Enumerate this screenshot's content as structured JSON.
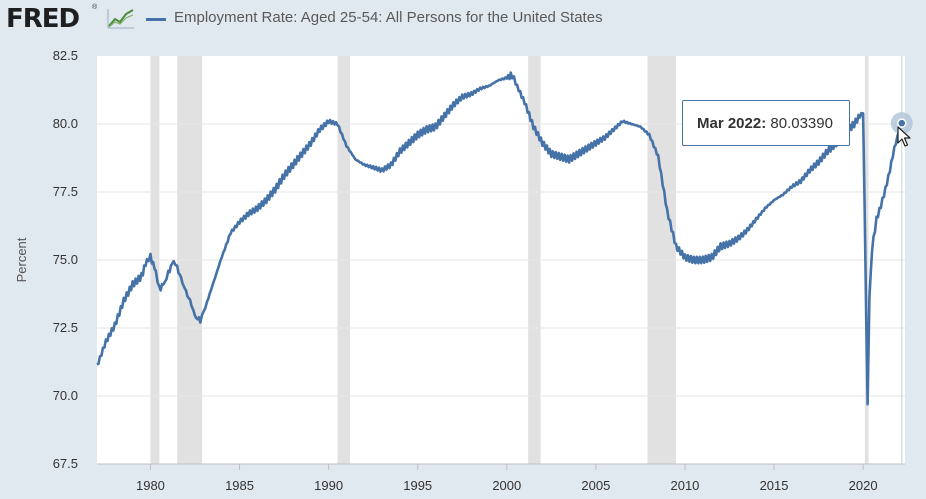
{
  "header": {
    "logo_text": "FRED",
    "logo_reg": "®",
    "series_title": "Employment Rate: Aged 25-54: All Persons for the United States",
    "series_color": "#4572a7"
  },
  "tooltip": {
    "date": "Mar 2022:",
    "value": "80.03390"
  },
  "chart_data": {
    "type": "line",
    "title": "",
    "xlabel": "",
    "ylabel": "Percent",
    "ylim": [
      67.5,
      82.5
    ],
    "xlim": [
      1977.0,
      2022.35
    ],
    "y_ticks": [
      "67.5",
      "70.0",
      "72.5",
      "75.0",
      "77.5",
      "80.0",
      "82.5"
    ],
    "x_ticks": [
      "1980",
      "1985",
      "1990",
      "1995",
      "2000",
      "2005",
      "2010",
      "2015",
      "2020"
    ],
    "grid": true,
    "legend": "top",
    "recessions": [
      [
        1980.0,
        1980.5
      ],
      [
        1981.5,
        1982.9
      ],
      [
        1990.5,
        1991.2
      ],
      [
        2001.2,
        2001.9
      ],
      [
        2007.9,
        2009.5
      ],
      [
        2020.1,
        2020.3
      ]
    ],
    "series": [
      {
        "name": "Employment Rate: Aged 25-54: All Persons for the United States",
        "color": "#4572a7",
        "x": [
          1977.0,
          1977.5,
          1978.0,
          1978.5,
          1979.0,
          1979.5,
          1979.8,
          1980.0,
          1980.3,
          1980.5,
          1980.8,
          1981.0,
          1981.3,
          1981.5,
          1981.8,
          1982.0,
          1982.3,
          1982.5,
          1982.8,
          1983.0,
          1983.5,
          1984.0,
          1984.5,
          1985.0,
          1985.5,
          1986.0,
          1986.5,
          1987.0,
          1987.5,
          1988.0,
          1988.5,
          1989.0,
          1989.5,
          1990.0,
          1990.5,
          1991.0,
          1991.5,
          1992.0,
          1992.5,
          1993.0,
          1993.5,
          1994.0,
          1994.5,
          1995.0,
          1995.5,
          1996.0,
          1996.5,
          1997.0,
          1997.5,
          1998.0,
          1998.5,
          1999.0,
          1999.5,
          2000.0,
          2000.3,
          2000.5,
          2001.0,
          2001.5,
          2002.0,
          2002.5,
          2003.0,
          2003.5,
          2004.0,
          2004.5,
          2005.0,
          2005.5,
          2006.0,
          2006.5,
          2007.0,
          2007.5,
          2008.0,
          2008.5,
          2009.0,
          2009.5,
          2010.0,
          2010.5,
          2011.0,
          2011.5,
          2012.0,
          2012.5,
          2013.0,
          2013.5,
          2014.0,
          2014.5,
          2015.0,
          2015.5,
          2016.0,
          2016.5,
          2017.0,
          2017.5,
          2018.0,
          2018.5,
          2019.0,
          2019.5,
          2019.9,
          2020.0,
          2020.25,
          2020.35,
          2020.5,
          2020.75,
          2021.0,
          2021.25,
          2021.5,
          2021.75,
          2022.0,
          2022.17
        ],
        "values": [
          71.1,
          72.0,
          72.6,
          73.5,
          74.1,
          74.4,
          75.0,
          75.1,
          74.6,
          73.9,
          74.2,
          74.5,
          75.0,
          74.7,
          74.2,
          73.8,
          73.4,
          72.9,
          72.8,
          73.1,
          74.1,
          75.1,
          76.0,
          76.4,
          76.7,
          76.9,
          77.2,
          77.6,
          78.1,
          78.5,
          78.9,
          79.3,
          79.8,
          80.1,
          80.0,
          79.2,
          78.7,
          78.5,
          78.4,
          78.3,
          78.5,
          79.0,
          79.3,
          79.6,
          79.8,
          79.9,
          80.3,
          80.7,
          81.0,
          81.1,
          81.3,
          81.4,
          81.6,
          81.7,
          81.8,
          81.5,
          80.8,
          79.9,
          79.3,
          78.9,
          78.8,
          78.7,
          78.9,
          79.1,
          79.3,
          79.5,
          79.8,
          80.1,
          80.0,
          79.9,
          79.6,
          78.8,
          76.8,
          75.5,
          75.1,
          75.0,
          75.0,
          75.1,
          75.5,
          75.6,
          75.8,
          76.1,
          76.5,
          76.9,
          77.2,
          77.4,
          77.7,
          77.9,
          78.3,
          78.6,
          79.0,
          79.3,
          79.7,
          80.0,
          80.4,
          80.5,
          69.7,
          73.6,
          75.4,
          76.5,
          77.0,
          77.6,
          78.3,
          79.1,
          79.7,
          80.03
        ]
      }
    ]
  }
}
